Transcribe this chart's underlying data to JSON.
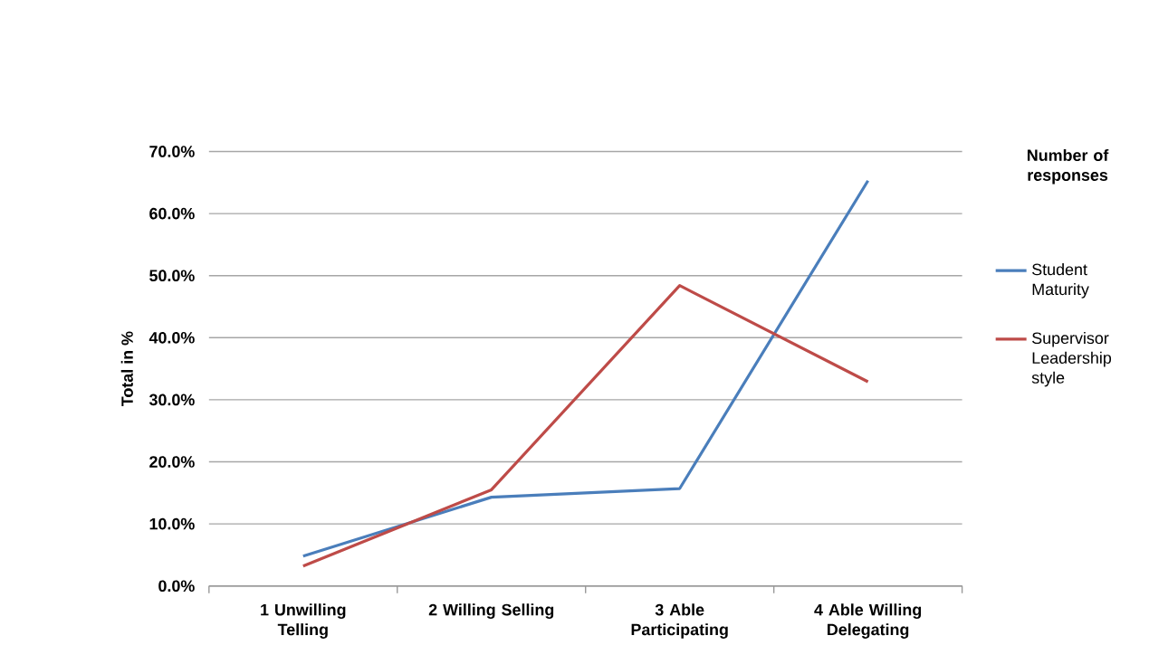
{
  "chart_data": {
    "type": "line",
    "ylabel": "Total in %",
    "legend_title": "Number of responses",
    "legend": "right",
    "grid": "y",
    "marker": "none",
    "line_style": "solid",
    "categories": [
      "1 Unwilling Telling",
      "2 Willing Selling",
      "3 Able Participating",
      "4 Able Willing Delegating"
    ],
    "ylim": [
      0,
      70
    ],
    "yticks": [
      {
        "value": 0,
        "label": "0.0%"
      },
      {
        "value": 10,
        "label": "10.0%"
      },
      {
        "value": 20,
        "label": "20.0%"
      },
      {
        "value": 30,
        "label": "30.0%"
      },
      {
        "value": 40,
        "label": "40.0%"
      },
      {
        "value": 50,
        "label": "50.0%"
      },
      {
        "value": 60,
        "label": "60.0%"
      },
      {
        "value": 70,
        "label": "70.0%"
      }
    ],
    "series": [
      {
        "name": "Student Maturity",
        "color": "#4a7ebb",
        "values": [
          4.8,
          14.3,
          15.7,
          65.3
        ]
      },
      {
        "name": "Supervisor Leadership style",
        "color": "#be4b48",
        "values": [
          3.2,
          15.5,
          48.4,
          32.9
        ]
      }
    ]
  }
}
